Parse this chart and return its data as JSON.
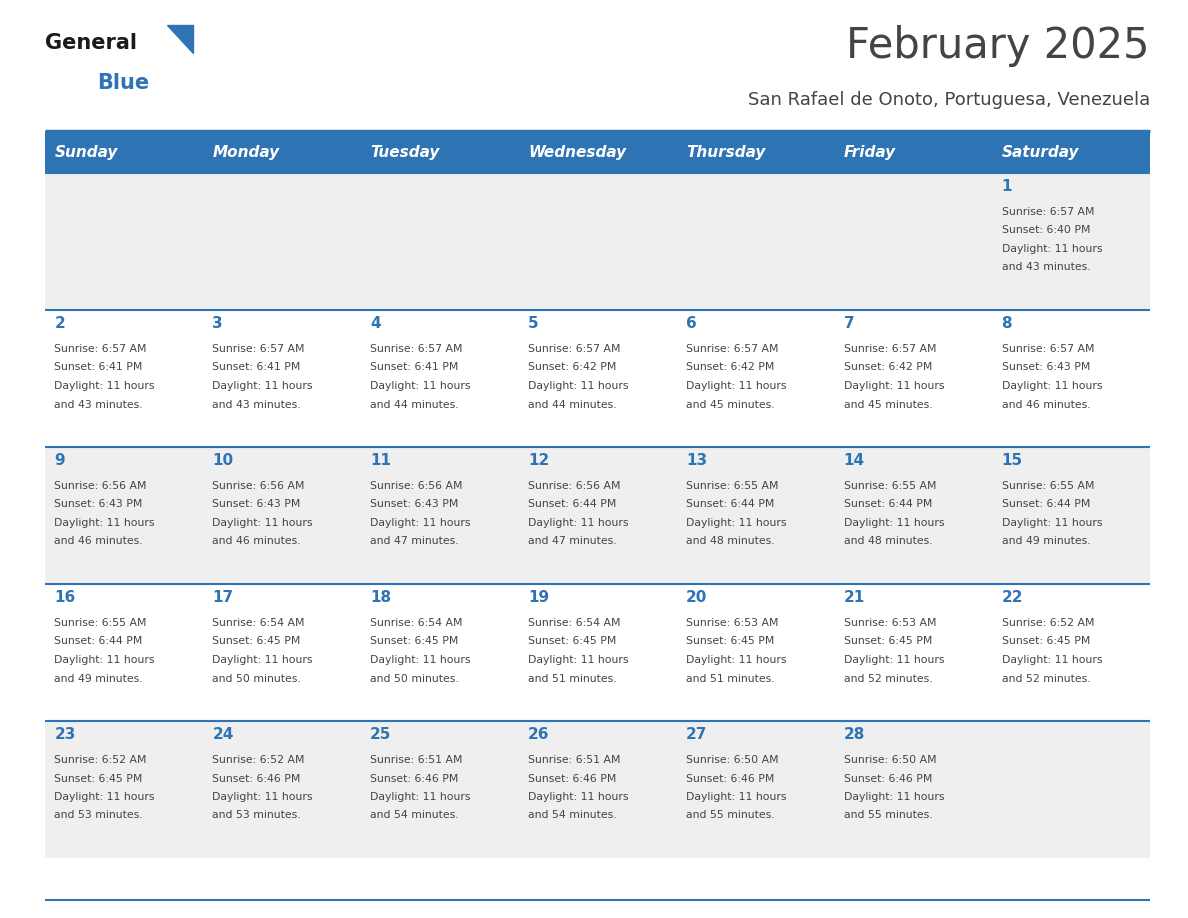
{
  "title": "February 2025",
  "subtitle": "San Rafael de Onoto, Portuguesa, Venezuela",
  "days_of_week": [
    "Sunday",
    "Monday",
    "Tuesday",
    "Wednesday",
    "Thursday",
    "Friday",
    "Saturday"
  ],
  "header_bg": "#2E74B5",
  "header_text_color": "#FFFFFF",
  "day_number_color": "#2E74B5",
  "cell_bg_alt": "#EFEFEF",
  "cell_bg_white": "#FFFFFF",
  "text_color": "#444444",
  "line_color": "#2E74B5",
  "logo_general_color": "#1A1A1A",
  "logo_blue_color": "#2E74B5",
  "calendar_data": [
    [
      null,
      null,
      null,
      null,
      null,
      null,
      {
        "day": 1,
        "sunrise": "6:57 AM",
        "sunset": "6:40 PM",
        "daylight": "11 hours and 43 minutes."
      }
    ],
    [
      {
        "day": 2,
        "sunrise": "6:57 AM",
        "sunset": "6:41 PM",
        "daylight": "11 hours and 43 minutes."
      },
      {
        "day": 3,
        "sunrise": "6:57 AM",
        "sunset": "6:41 PM",
        "daylight": "11 hours and 43 minutes."
      },
      {
        "day": 4,
        "sunrise": "6:57 AM",
        "sunset": "6:41 PM",
        "daylight": "11 hours and 44 minutes."
      },
      {
        "day": 5,
        "sunrise": "6:57 AM",
        "sunset": "6:42 PM",
        "daylight": "11 hours and 44 minutes."
      },
      {
        "day": 6,
        "sunrise": "6:57 AM",
        "sunset": "6:42 PM",
        "daylight": "11 hours and 45 minutes."
      },
      {
        "day": 7,
        "sunrise": "6:57 AM",
        "sunset": "6:42 PM",
        "daylight": "11 hours and 45 minutes."
      },
      {
        "day": 8,
        "sunrise": "6:57 AM",
        "sunset": "6:43 PM",
        "daylight": "11 hours and 46 minutes."
      }
    ],
    [
      {
        "day": 9,
        "sunrise": "6:56 AM",
        "sunset": "6:43 PM",
        "daylight": "11 hours and 46 minutes."
      },
      {
        "day": 10,
        "sunrise": "6:56 AM",
        "sunset": "6:43 PM",
        "daylight": "11 hours and 46 minutes."
      },
      {
        "day": 11,
        "sunrise": "6:56 AM",
        "sunset": "6:43 PM",
        "daylight": "11 hours and 47 minutes."
      },
      {
        "day": 12,
        "sunrise": "6:56 AM",
        "sunset": "6:44 PM",
        "daylight": "11 hours and 47 minutes."
      },
      {
        "day": 13,
        "sunrise": "6:55 AM",
        "sunset": "6:44 PM",
        "daylight": "11 hours and 48 minutes."
      },
      {
        "day": 14,
        "sunrise": "6:55 AM",
        "sunset": "6:44 PM",
        "daylight": "11 hours and 48 minutes."
      },
      {
        "day": 15,
        "sunrise": "6:55 AM",
        "sunset": "6:44 PM",
        "daylight": "11 hours and 49 minutes."
      }
    ],
    [
      {
        "day": 16,
        "sunrise": "6:55 AM",
        "sunset": "6:44 PM",
        "daylight": "11 hours and 49 minutes."
      },
      {
        "day": 17,
        "sunrise": "6:54 AM",
        "sunset": "6:45 PM",
        "daylight": "11 hours and 50 minutes."
      },
      {
        "day": 18,
        "sunrise": "6:54 AM",
        "sunset": "6:45 PM",
        "daylight": "11 hours and 50 minutes."
      },
      {
        "day": 19,
        "sunrise": "6:54 AM",
        "sunset": "6:45 PM",
        "daylight": "11 hours and 51 minutes."
      },
      {
        "day": 20,
        "sunrise": "6:53 AM",
        "sunset": "6:45 PM",
        "daylight": "11 hours and 51 minutes."
      },
      {
        "day": 21,
        "sunrise": "6:53 AM",
        "sunset": "6:45 PM",
        "daylight": "11 hours and 52 minutes."
      },
      {
        "day": 22,
        "sunrise": "6:52 AM",
        "sunset": "6:45 PM",
        "daylight": "11 hours and 52 minutes."
      }
    ],
    [
      {
        "day": 23,
        "sunrise": "6:52 AM",
        "sunset": "6:45 PM",
        "daylight": "11 hours and 53 minutes."
      },
      {
        "day": 24,
        "sunrise": "6:52 AM",
        "sunset": "6:46 PM",
        "daylight": "11 hours and 53 minutes."
      },
      {
        "day": 25,
        "sunrise": "6:51 AM",
        "sunset": "6:46 PM",
        "daylight": "11 hours and 54 minutes."
      },
      {
        "day": 26,
        "sunrise": "6:51 AM",
        "sunset": "6:46 PM",
        "daylight": "11 hours and 54 minutes."
      },
      {
        "day": 27,
        "sunrise": "6:50 AM",
        "sunset": "6:46 PM",
        "daylight": "11 hours and 55 minutes."
      },
      {
        "day": 28,
        "sunrise": "6:50 AM",
        "sunset": "6:46 PM",
        "daylight": "11 hours and 55 minutes."
      },
      null
    ]
  ]
}
